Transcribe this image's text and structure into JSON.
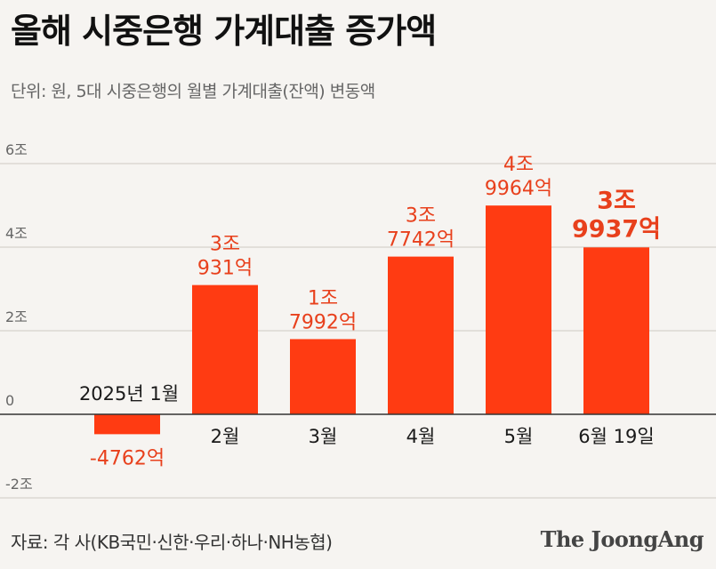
{
  "header": {
    "title": "올해 시중은행 가계대출 증가액",
    "subtitle": "단위: 원, 5대 시중은행의 월별 가계대출(잔액) 변동액"
  },
  "footer": {
    "source": "자료: 각 사(KB국민·신한·우리·하나·NH농협)",
    "brand": "The JoongAng"
  },
  "colors": {
    "bar": "#ff3b12",
    "label": "#e8401c",
    "grid": "#cfcac3",
    "zero_line": "#333333"
  },
  "chart_data": {
    "type": "bar",
    "title": "올해 시중은행 가계대출 증가액",
    "ylabel": "",
    "xlabel": "",
    "unit": "원",
    "ylim": [
      -2,
      6
    ],
    "y_ticks": [
      -2,
      0,
      2,
      4,
      6
    ],
    "y_tick_labels": [
      "-2조",
      "0",
      "2조",
      "4조",
      "6조"
    ],
    "grid": true,
    "categories": [
      "2025년 1월",
      "2월",
      "3월",
      "4월",
      "5월",
      "6월 19일"
    ],
    "values_trillion_won": [
      -0.4762,
      3.0931,
      1.7992,
      3.7742,
      4.9964,
      3.9937
    ],
    "data_labels": [
      [
        "-4762억"
      ],
      [
        "3조",
        "931억"
      ],
      [
        "1조",
        "7992억"
      ],
      [
        "3조",
        "7742억"
      ],
      [
        "4조",
        "9964억"
      ],
      [
        "3조",
        "9937억"
      ]
    ],
    "highlight_index": 5
  }
}
